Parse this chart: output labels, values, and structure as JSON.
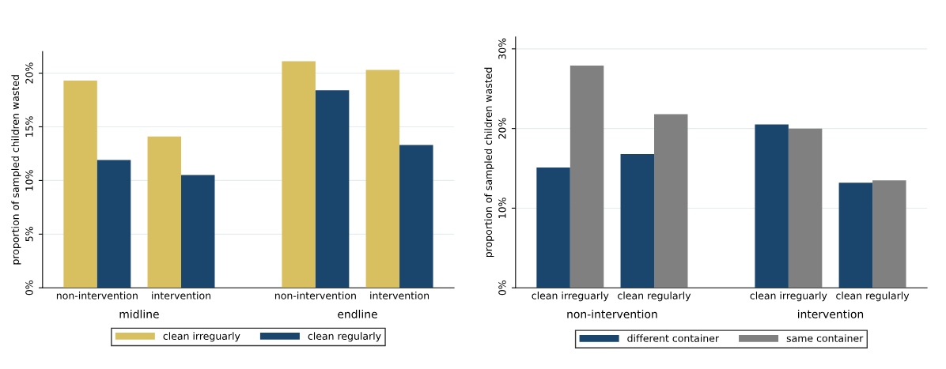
{
  "chart_data": [
    {
      "type": "bar",
      "ylabel": "proportion of sampled children wasted",
      "categories": [
        "non-intervention",
        "intervention",
        "non-intervention",
        "intervention"
      ],
      "series": [
        {
          "name": "clean irreguarly",
          "color": "#d8c060",
          "values": [
            19.3,
            14.1,
            21.1,
            20.3
          ]
        },
        {
          "name": "clean regularly",
          "color": "#1a456d",
          "values": [
            11.9,
            10.5,
            18.4,
            13.3
          ]
        }
      ],
      "ylim": [
        0,
        22
      ],
      "yticks": [
        {
          "value": 0,
          "label": "0%"
        },
        {
          "value": 5,
          "label": "5%"
        },
        {
          "value": 10,
          "label": "10%"
        },
        {
          "value": 15,
          "label": "15%"
        },
        {
          "value": 20,
          "label": "20%"
        }
      ],
      "annotations": [
        "midline",
        "endline"
      ],
      "grid": "y",
      "legend": "bottom"
    },
    {
      "type": "bar",
      "ylabel": "proportion of sampled children wasted",
      "categories": [
        "clean irreguarly",
        "clean regularly",
        "clean irreguarly",
        "clean regularly"
      ],
      "series": [
        {
          "name": "different container",
          "color": "#1a456d",
          "values": [
            15.1,
            16.8,
            20.5,
            13.2
          ]
        },
        {
          "name": "same container",
          "color": "#808080",
          "values": [
            27.9,
            21.8,
            20.0,
            13.5
          ]
        }
      ],
      "ylim": [
        0,
        31.5
      ],
      "yticks": [
        {
          "value": 0,
          "label": "0%"
        },
        {
          "value": 10,
          "label": "10%"
        },
        {
          "value": 20,
          "label": "20%"
        },
        {
          "value": 30,
          "label": "30%"
        }
      ],
      "annotations": [
        "non-intervention",
        "intervention"
      ],
      "grid": "y",
      "legend": "bottom"
    }
  ]
}
